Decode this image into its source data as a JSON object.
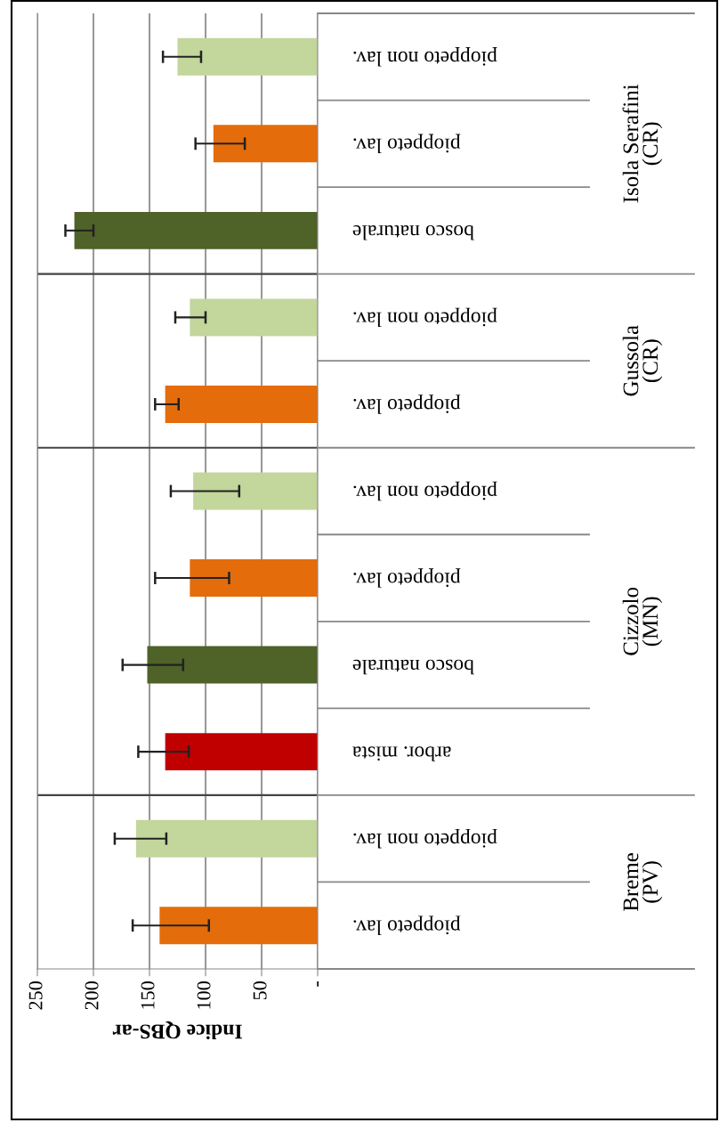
{
  "chart_data": {
    "type": "bar",
    "orientation": "horizontal",
    "categories": [
      "pioppeto non lav.",
      "pioppeto lav.",
      "bosco naturale",
      "pioppeto non lav.",
      "pioppeto lav.",
      "pioppeto non lav.",
      "pioppeto lav.",
      "bosco naturale",
      "arbor. mista",
      "pioppeto non lav.",
      "pioppeto lav."
    ],
    "values": [
      125,
      93,
      217,
      114,
      136,
      111,
      114,
      152,
      136,
      162,
      141
    ],
    "colors": [
      "#c3d69b",
      "#e46c0a",
      "#4f6228",
      "#c3d69b",
      "#e46c0a",
      "#c3d69b",
      "#e46c0a",
      "#4f6228",
      "#c00000",
      "#c3d69b",
      "#e46c0a"
    ],
    "errors": [
      [
        104,
        138
      ],
      [
        65,
        109
      ],
      [
        200,
        225
      ],
      [
        100,
        127
      ],
      [
        124,
        145
      ],
      [
        70,
        131
      ],
      [
        79,
        145
      ],
      [
        120,
        174
      ],
      [
        115,
        160
      ],
      [
        135,
        181
      ],
      [
        97,
        165
      ]
    ],
    "xlabel": "Indice QBS-ar",
    "xlim": [
      250,
      0
    ],
    "xticks": [
      250,
      200,
      150,
      100,
      50,
      {
        "value": 0,
        "label": "-"
      }
    ],
    "grid": "x",
    "annotations": [
      "Isola Serafini\n(CR)",
      "Gussola\n(CR)",
      "Cizzolo\n(MN)",
      "Breme\n(PV)"
    ]
  }
}
